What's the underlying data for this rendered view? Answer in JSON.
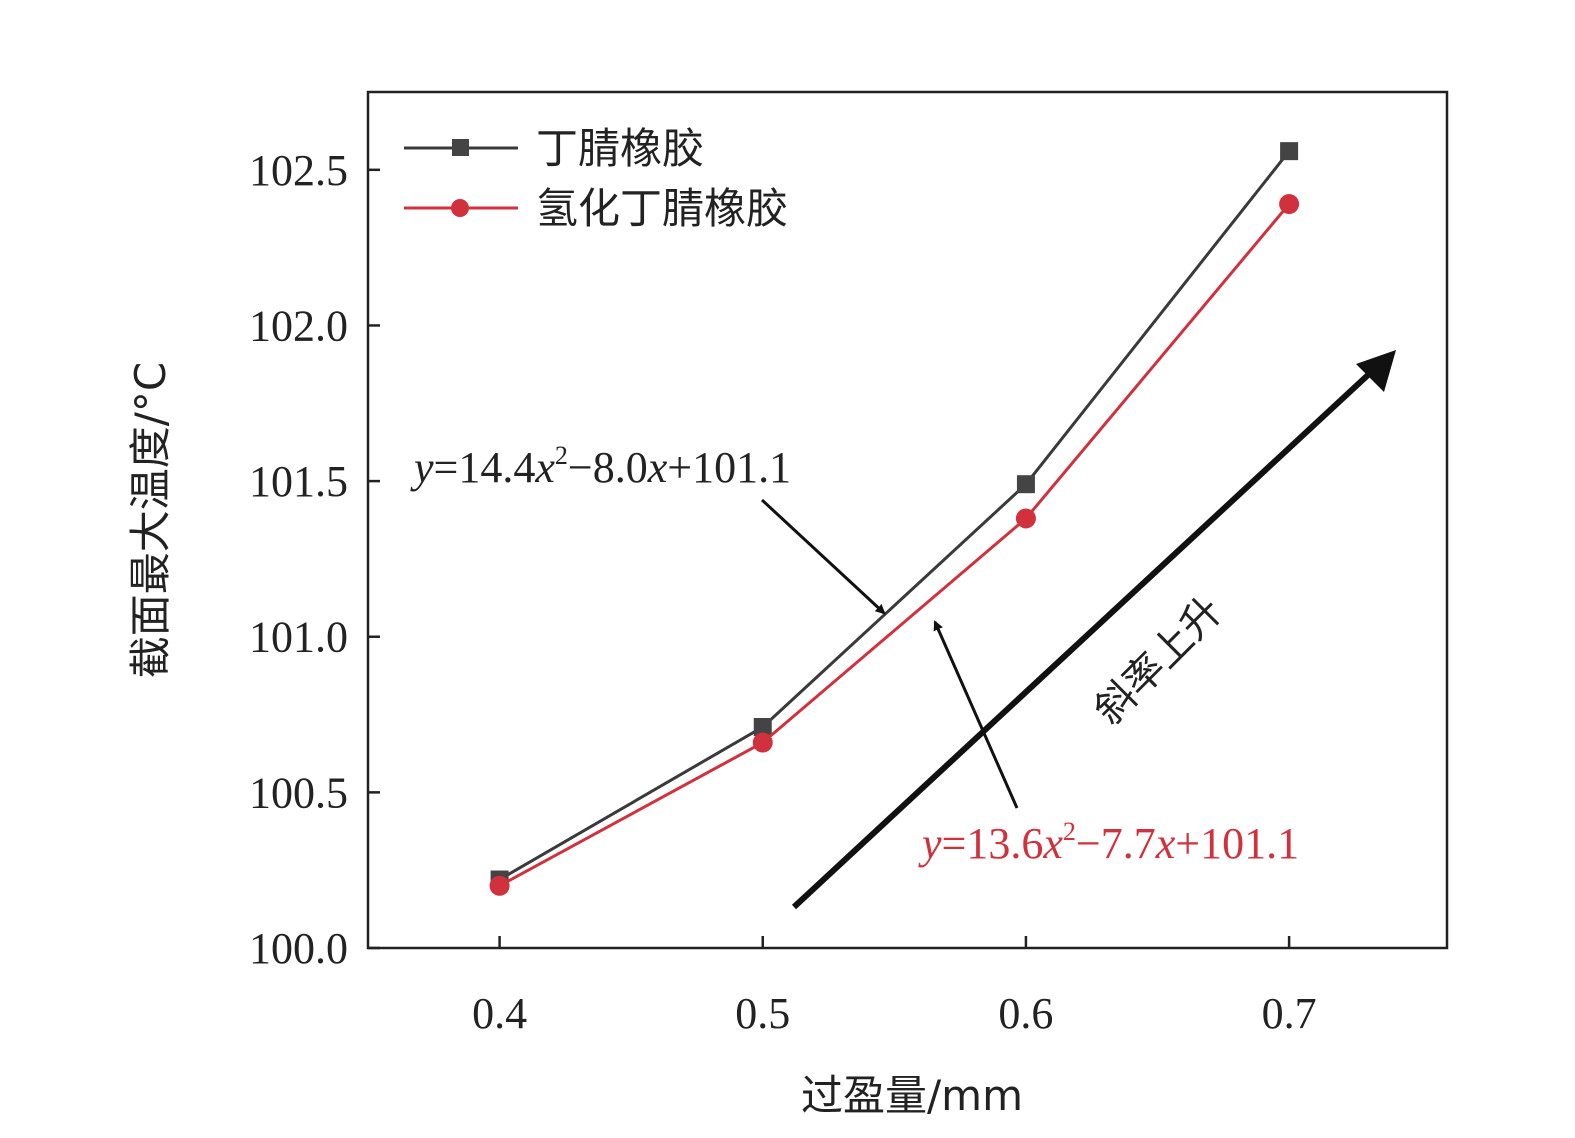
{
  "chart_data": {
    "type": "line",
    "x": [
      0.4,
      0.5,
      0.6,
      0.7
    ],
    "x_ticks": [
      "0.4",
      "0.5",
      "0.6",
      "0.7"
    ],
    "y_ticks": [
      "100.0",
      "100.5",
      "101.0",
      "101.5",
      "102.0",
      "102.5"
    ],
    "xlim": [
      0.35,
      0.76
    ],
    "ylim": [
      100.0,
      102.75
    ],
    "xlabel": "过盈量/mm",
    "ylabel": "截面最大温度/°C",
    "grid": false,
    "legend_position": "top-left",
    "series": [
      {
        "name": "丁腈橡胶",
        "values": [
          100.22,
          100.71,
          101.49,
          102.56
        ],
        "color": "#3a3a3a",
        "marker": "square"
      },
      {
        "name": "氢化丁腈橡胶",
        "values": [
          100.2,
          100.66,
          101.38,
          102.39
        ],
        "color": "#d0313d",
        "marker": "circle"
      }
    ],
    "annotations": {
      "fit_1": {
        "y": "y",
        "eq1": "=14.4",
        "x1": "x",
        "sup": "2",
        "eq2": "−8.0",
        "x2": "x",
        "eq3": "+101.1",
        "color": "#222222"
      },
      "fit_2": {
        "y": "y",
        "eq1": "=13.6",
        "x1": "x",
        "sup": "2",
        "eq2": "−7.7",
        "x2": "x",
        "eq3": "+101.1",
        "color": "#d0313d"
      },
      "slope_text": "斜率上升"
    }
  }
}
